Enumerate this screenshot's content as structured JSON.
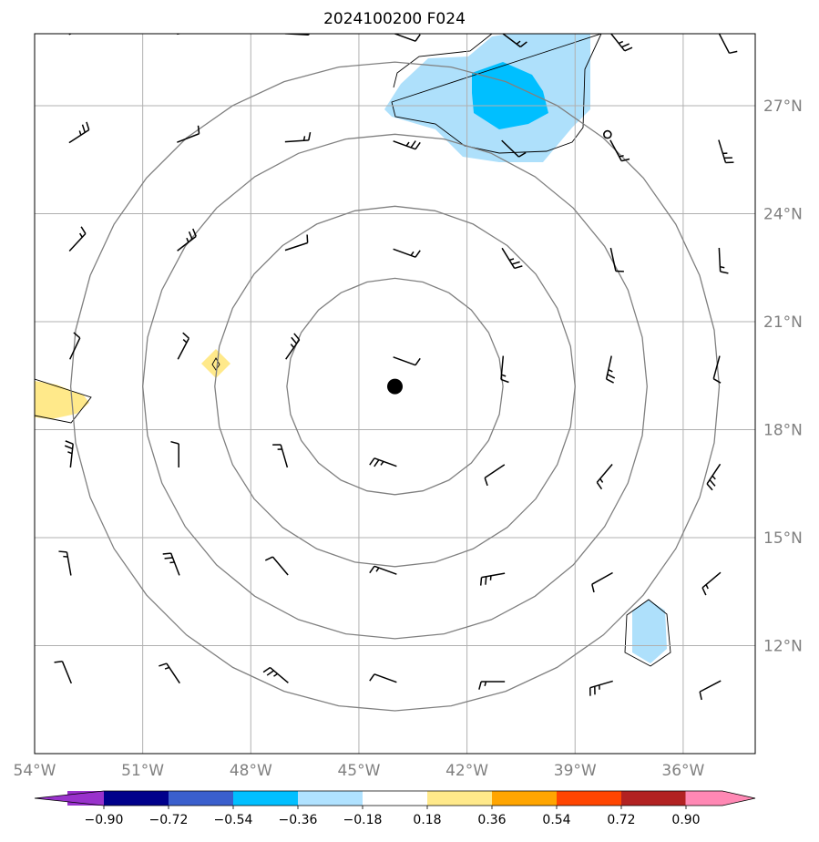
{
  "title": "2024100200 F024",
  "map": {
    "lon_range": [
      -54,
      -34
    ],
    "lat_range": [
      9,
      29
    ],
    "center": {
      "lon": -44,
      "lat": 19.2,
      "marker": "storm-center-dot"
    },
    "range_rings_deg": [
      3,
      5,
      7,
      9
    ],
    "lon_ticks": [
      {
        "value": -54,
        "label": "54°W"
      },
      {
        "value": -51,
        "label": "51°W"
      },
      {
        "value": -48,
        "label": "48°W"
      },
      {
        "value": -45,
        "label": "45°W"
      },
      {
        "value": -42,
        "label": "42°W"
      },
      {
        "value": -39,
        "label": "39°W"
      },
      {
        "value": -36,
        "label": "36°W"
      }
    ],
    "lat_ticks": [
      {
        "value": 12,
        "label": "12°N"
      },
      {
        "value": 15,
        "label": "15°N"
      },
      {
        "value": 18,
        "label": "18°N"
      },
      {
        "value": 21,
        "label": "21°N"
      },
      {
        "value": 24,
        "label": "24°N"
      },
      {
        "value": 27,
        "label": "27°N"
      }
    ],
    "grid": true,
    "small_ring_marker": {
      "lon": -38.1,
      "lat": 26.2
    },
    "colors": {
      "ring": "#808080",
      "grid": "#b0b0b0",
      "light_blue": "#aee0fb",
      "blue": "#00bfff",
      "light_yellow": "#ffe98a",
      "barb": "#000000"
    }
  },
  "colorbar": {
    "colors": [
      "#9932cc",
      "#00008b",
      "#3a5fcd",
      "#00bfff",
      "#b0e2ff",
      "#ffffff",
      "#ffe98a",
      "#ffa500",
      "#ff4500",
      "#b22222",
      "#ff88b4"
    ],
    "tick_labels": [
      "−0.90",
      "−0.72",
      "−0.54",
      "−0.36",
      "−0.18",
      "0.18",
      "0.36",
      "0.54",
      "0.72",
      "0.90"
    ]
  },
  "chart_data": {
    "type": "map",
    "title": "2024100200 F024",
    "xlim": [
      -54,
      -34
    ],
    "ylim": [
      9,
      29
    ],
    "shaded_regions": [
      {
        "color": "light_blue",
        "level_range": [
          -0.36,
          -0.18
        ],
        "approx_center": {
          "lon": -40.5,
          "lat": 27.5
        }
      },
      {
        "color": "blue",
        "level_range": [
          -0.54,
          -0.36
        ],
        "approx_center": {
          "lon": -40.9,
          "lat": 27.6
        }
      },
      {
        "color": "light_blue",
        "level_range": [
          -0.36,
          -0.18
        ],
        "approx_center": {
          "lon": -36.9,
          "lat": 12.6
        }
      },
      {
        "color": "light_yellow",
        "level_range": [
          0.18,
          0.36
        ],
        "approx_center": {
          "lon": -49,
          "lat": 20
        }
      },
      {
        "color": "light_yellow",
        "level_range": [
          0.18,
          0.36
        ],
        "approx_center": {
          "lon": -53.5,
          "lat": 19
        }
      }
    ],
    "wind_barb_lons": [
      -53,
      -50,
      -47,
      -44,
      -41,
      -38,
      -35
    ],
    "wind_barb_lats": [
      11,
      14,
      17,
      20,
      23,
      26,
      29
    ]
  }
}
